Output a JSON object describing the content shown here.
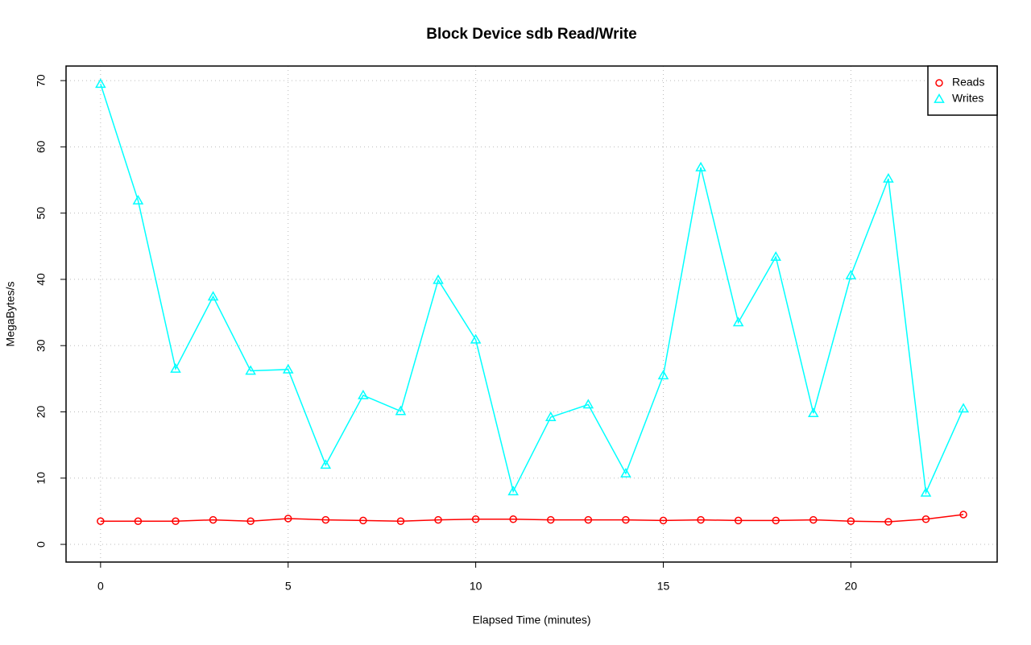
{
  "chart_data": {
    "type": "line",
    "title": "Block Device sdb Read/Write",
    "x_label": "Elapsed Time (minutes)",
    "y_label": "MegaBytes/s",
    "x": [
      0,
      1,
      2,
      3,
      4,
      5,
      6,
      7,
      8,
      9,
      10,
      11,
      12,
      13,
      14,
      15,
      16,
      17,
      18,
      19,
      20,
      21,
      22,
      23
    ],
    "series": [
      {
        "name": "Reads",
        "color": "#ff0000",
        "marker": "circle",
        "values": [
          3.5,
          3.5,
          3.5,
          3.7,
          3.5,
          3.9,
          3.7,
          3.6,
          3.5,
          3.7,
          3.8,
          3.8,
          3.7,
          3.7,
          3.7,
          3.6,
          3.7,
          3.6,
          3.6,
          3.7,
          3.5,
          3.4,
          3.8,
          4.5
        ]
      },
      {
        "name": "Writes",
        "color": "#00ffff",
        "marker": "triangle",
        "values": [
          69.5,
          51.9,
          26.5,
          37.4,
          26.2,
          26.4,
          12.0,
          22.5,
          20.1,
          39.9,
          30.9,
          8.0,
          19.2,
          21.1,
          10.7,
          25.5,
          56.9,
          33.5,
          43.4,
          19.8,
          40.6,
          55.2,
          7.8,
          20.5
        ]
      }
    ],
    "xlim": [
      -0.92,
      23.9
    ],
    "ylim": [
      -2.67,
      72.2
    ],
    "xticks": [
      0,
      5,
      10,
      15,
      20
    ],
    "yticks": [
      0,
      10,
      20,
      30,
      40,
      50,
      60,
      70
    ],
    "grid": true,
    "legend": "top-right"
  }
}
